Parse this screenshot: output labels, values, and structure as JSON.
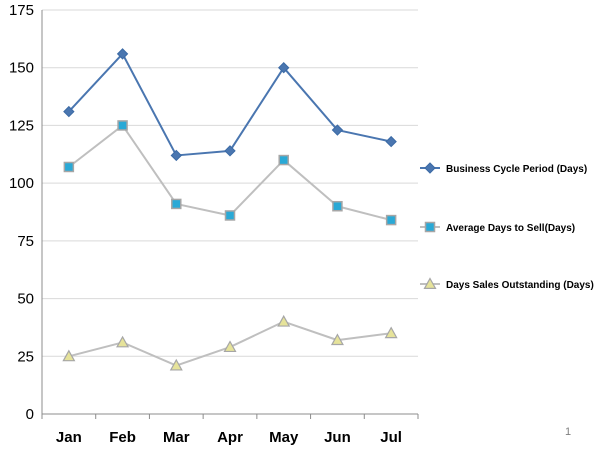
{
  "chart_data": {
    "type": "line",
    "categories": [
      "Jan",
      "Feb",
      "Mar",
      "Apr",
      "May",
      "Jun",
      "Jul"
    ],
    "ylim": [
      0,
      175
    ],
    "yticks": [
      0,
      25,
      50,
      75,
      100,
      125,
      150,
      175
    ],
    "grid": true,
    "legend": "right",
    "series": [
      {
        "name": "Business Cycle Period (Days)",
        "values": [
          131,
          156,
          112,
          114,
          150,
          123,
          118
        ],
        "color": "#4a76b0",
        "marker": "diamond",
        "marker_color": "#4a76b0"
      },
      {
        "name": "Average Days to Sell(Days)",
        "values": [
          107,
          125,
          91,
          86,
          110,
          90,
          84
        ],
        "color": "#bfbfbf",
        "marker": "square",
        "marker_color": "#2aa9d6"
      },
      {
        "name": "Days Sales Outstanding (Days)",
        "values": [
          25,
          31,
          21,
          29,
          40,
          32,
          35
        ],
        "color": "#bfbfbf",
        "marker": "triangle",
        "marker_color": "#e6e39a"
      }
    ]
  },
  "page_number": "1"
}
